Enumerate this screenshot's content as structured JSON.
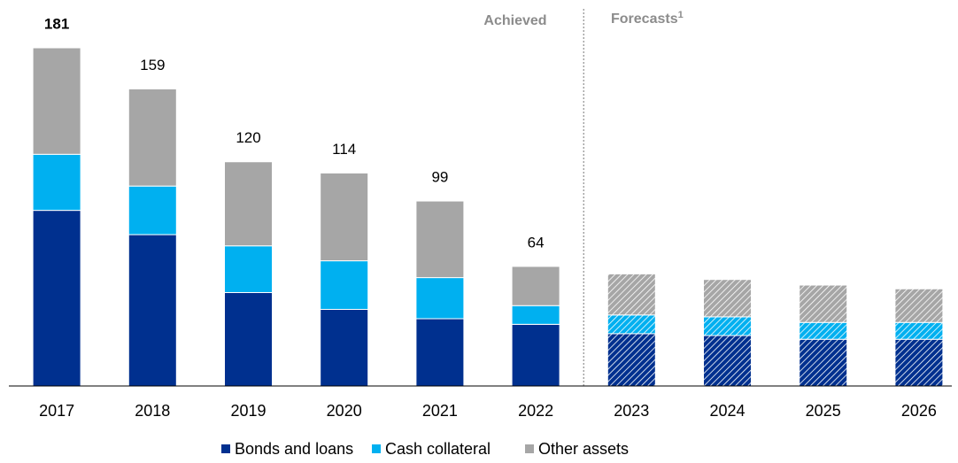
{
  "chart_data": {
    "type": "stacked_bar",
    "categories": [
      "2017",
      "2018",
      "2019",
      "2020",
      "2021",
      "2022",
      "2023",
      "2024",
      "2025",
      "2026"
    ],
    "series": [
      {
        "name": "Bonds and loans",
        "color": "#00308f",
        "values": [
          94,
          81,
          50,
          41,
          36,
          33,
          28,
          27,
          25,
          25
        ]
      },
      {
        "name": "Cash collateral",
        "color": "#00b0f0",
        "values": [
          30,
          26,
          25,
          26,
          22,
          10,
          10,
          10,
          9,
          9
        ]
      },
      {
        "name": "Other assets",
        "color": "#a6a6a6",
        "values": [
          57,
          52,
          45,
          47,
          41,
          21,
          22,
          20,
          20,
          18
        ]
      }
    ],
    "total_labels": [
      181,
      159,
      120,
      114,
      99,
      64
    ],
    "annotations": {
      "achieved": "Achieved",
      "forecasts": "Forecasts",
      "forecasts_note": "1"
    },
    "forecast_start": "2023",
    "ylim": [
      0,
      190
    ]
  }
}
